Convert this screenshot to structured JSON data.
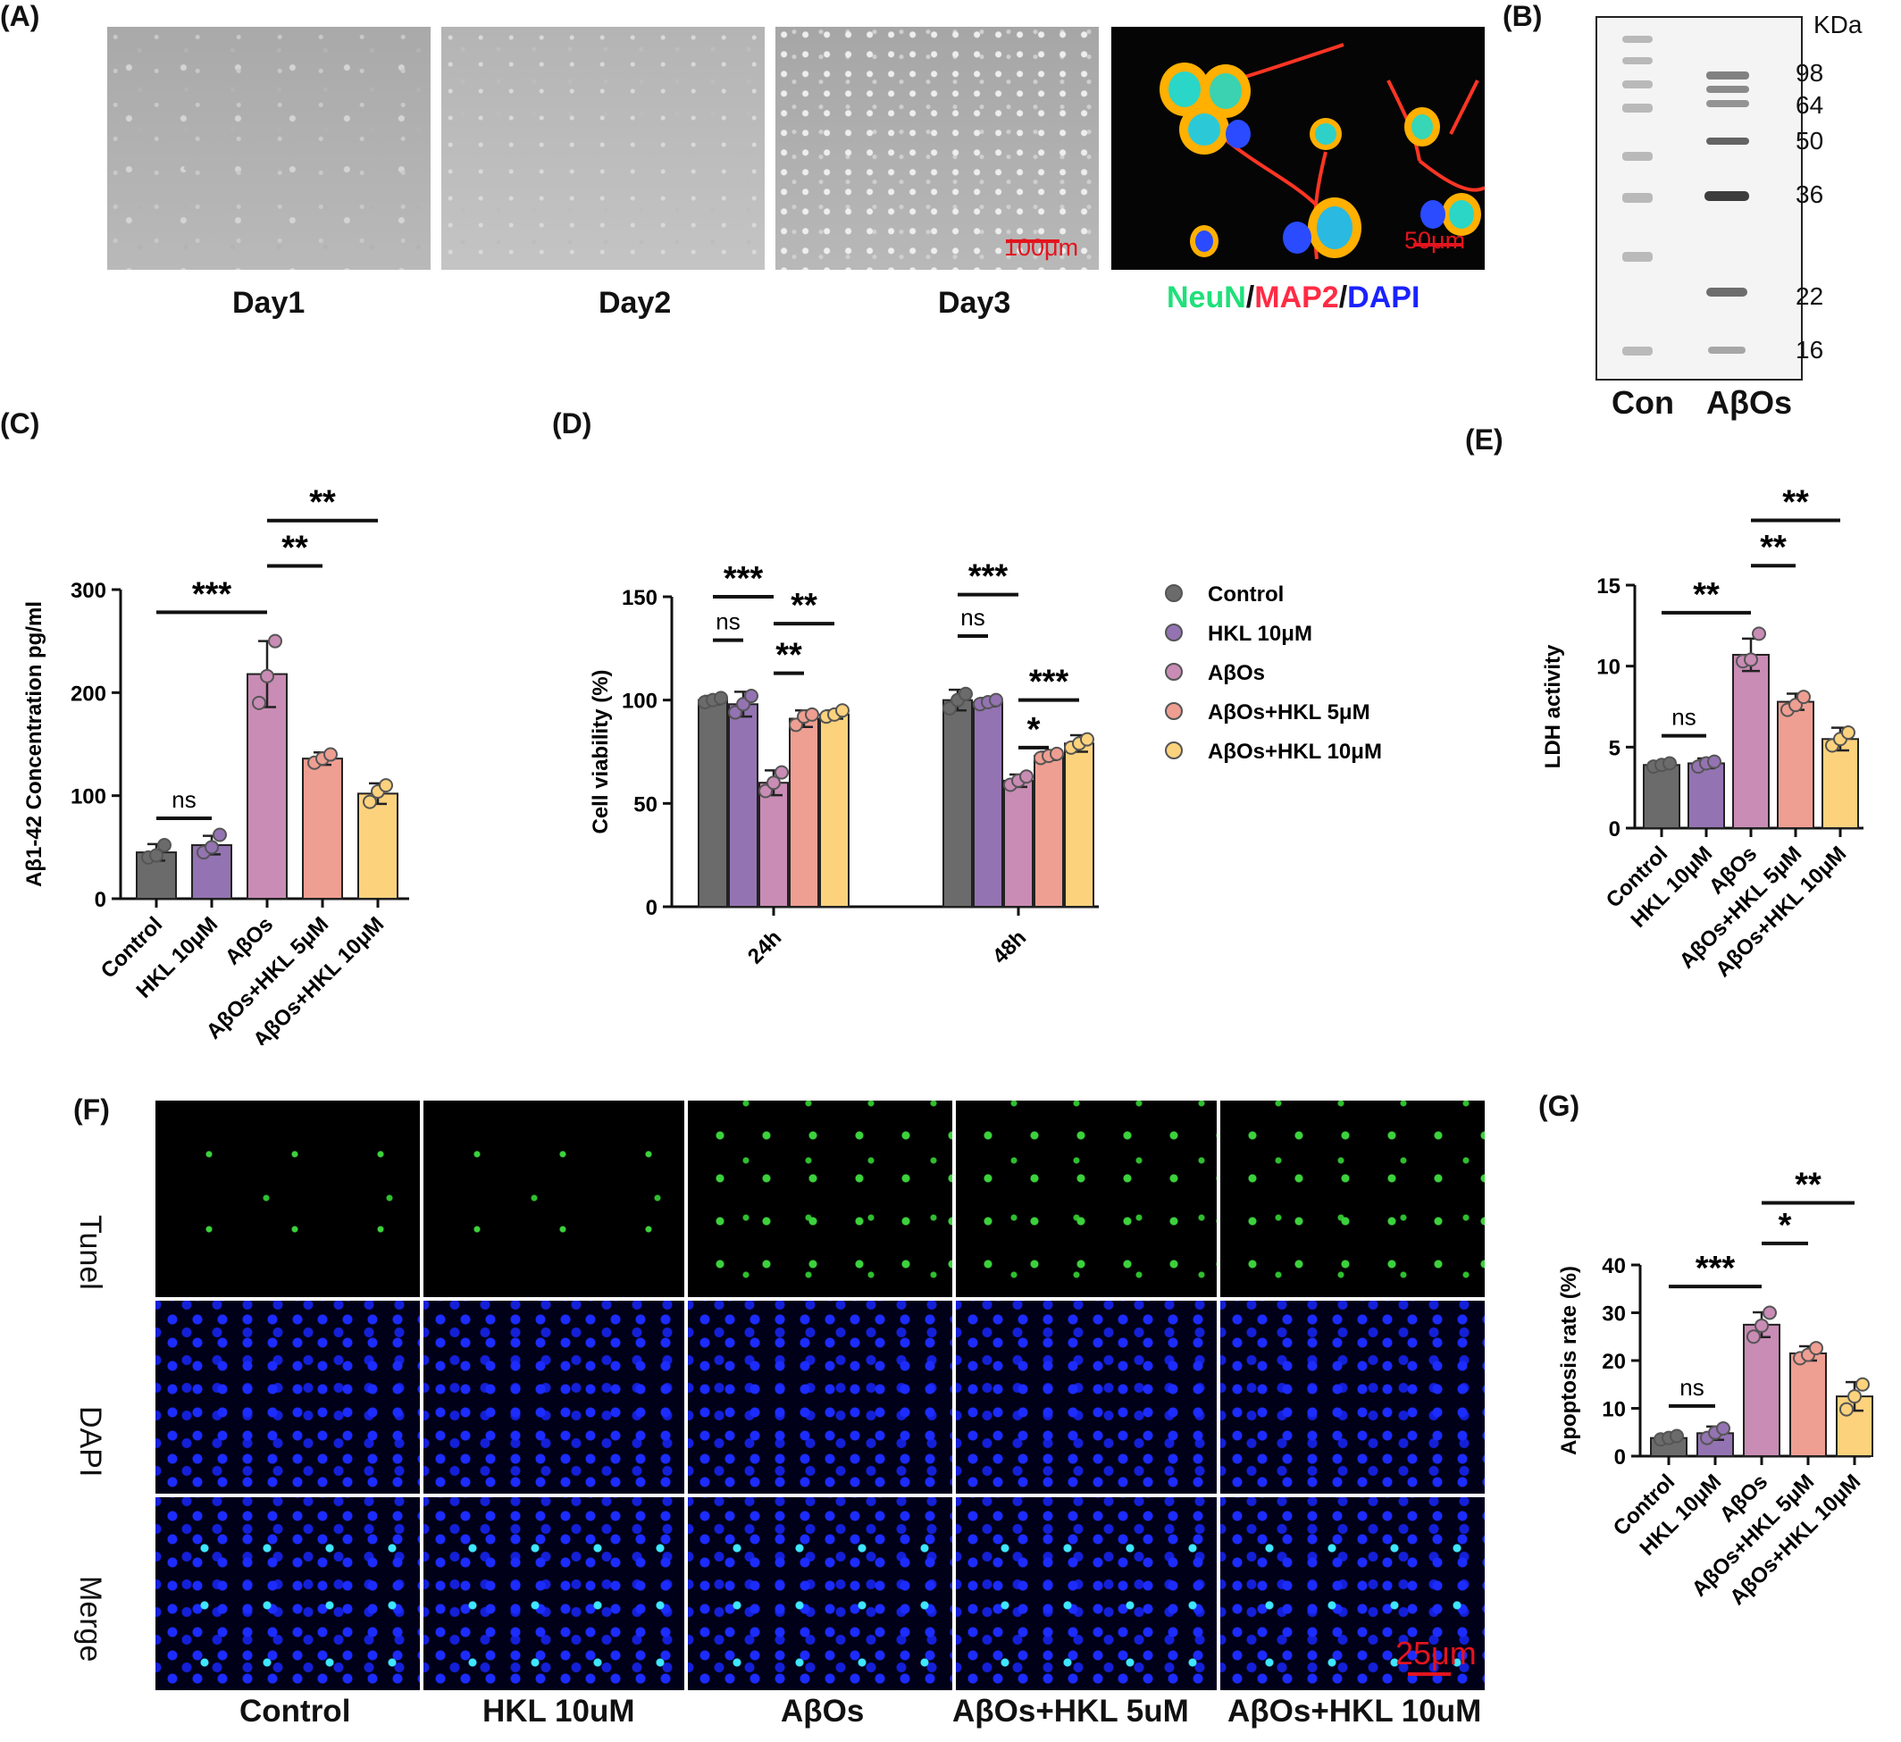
{
  "panel_labels": {
    "A": "(A)",
    "B": "(B)",
    "C": "(C)",
    "D": "(D)",
    "E": "(E)",
    "F": "(F)",
    "G": "(G)"
  },
  "panel_a": {
    "captions": [
      "Day1",
      "Day2",
      "Day3"
    ],
    "scalebars": [
      "100μm",
      "50μm"
    ],
    "stain": {
      "neun": "NeuN",
      "sep1": "/",
      "map2": "MAP2",
      "sep2": "/",
      "dapi": "DAPI"
    },
    "colors": {
      "neun": "#1fe07a",
      "map2": "#ff2b44",
      "dapi": "#1a22ff"
    }
  },
  "panel_b": {
    "unit": "KDa",
    "markers": [
      "98",
      "64",
      "50",
      "36",
      "22",
      "16"
    ],
    "lanes": [
      "Con",
      "AβOs"
    ]
  },
  "panel_f": {
    "rows": [
      "Tunel",
      "DAPI",
      "Merge"
    ],
    "columns": [
      "Control",
      "HKL 10uM",
      "AβOs",
      "AβOs+HKL 5uM",
      "AβOs+HKL 10uM"
    ],
    "scalebar": "25μm"
  },
  "chart_data": [
    {
      "panel": "C",
      "type": "bar",
      "ylabel": "Aβ1-42 Concentration pg/ml",
      "ylim": [
        0,
        300
      ],
      "yticks": [
        0,
        100,
        200,
        300
      ],
      "categories": [
        "Control",
        "HKL 10μM",
        "AβOs",
        "AβOs+HKL 5μM",
        "AβOs+HKL 10μM"
      ],
      "values": [
        45,
        52,
        218,
        136,
        102
      ],
      "errors": [
        8,
        9,
        32,
        6,
        10
      ],
      "points": [
        [
          40,
          42,
          52
        ],
        [
          45,
          50,
          62
        ],
        [
          190,
          216,
          250
        ],
        [
          132,
          136,
          140
        ],
        [
          94,
          104,
          110
        ]
      ],
      "colors": [
        "#6b6b6b",
        "#9473b2",
        "#c98cb5",
        "#ef9e92",
        "#fcd27d"
      ],
      "significance": [
        {
          "from": 0,
          "to": 1,
          "label": "ns",
          "y": 78
        },
        {
          "from": 0,
          "to": 2,
          "label": "***",
          "y": 278
        },
        {
          "from": 2,
          "to": 3,
          "label": "**",
          "y": 323
        },
        {
          "from": 2,
          "to": 4,
          "label": "**",
          "y": 367
        }
      ]
    },
    {
      "panel": "D",
      "type": "bar",
      "ylabel": "Cell viability (%)",
      "ylim": [
        0,
        150
      ],
      "yticks": [
        0,
        50,
        100,
        150
      ],
      "groups": [
        "24h",
        "48h"
      ],
      "series": [
        {
          "name": "Control",
          "color": "#6b6b6b",
          "values": [
            100,
            100
          ],
          "errors": [
            2,
            5
          ],
          "points": [
            [
              99,
              100,
              101
            ],
            [
              96,
              100,
              103
            ]
          ]
        },
        {
          "name": "HKL 10μM",
          "color": "#9473b2",
          "values": [
            98,
            99
          ],
          "errors": [
            6,
            2
          ],
          "points": [
            [
              94,
              98,
              102
            ],
            [
              98,
              99,
              100
            ]
          ]
        },
        {
          "name": "AβOs",
          "color": "#c98cb5",
          "values": [
            60,
            61
          ],
          "errors": [
            6,
            3
          ],
          "points": [
            [
              56,
              60,
              65
            ],
            [
              59,
              61,
              63
            ]
          ]
        },
        {
          "name": "AβOs+HKL 5μM",
          "color": "#ef9e92",
          "values": [
            91,
            73
          ],
          "errors": [
            4,
            2
          ],
          "points": [
            [
              88,
              92,
              93
            ],
            [
              72,
              73,
              74
            ]
          ]
        },
        {
          "name": "AβOs+HKL 10μM",
          "color": "#fcd27d",
          "values": [
            93,
            79
          ],
          "errors": [
            2,
            4
          ],
          "points": [
            [
              92,
              93,
              95
            ],
            [
              77,
              79,
              81
            ]
          ]
        }
      ],
      "significance": [
        {
          "group": 0,
          "from": 0,
          "to": 1,
          "label": "ns",
          "y": 129
        },
        {
          "group": 0,
          "from": 0,
          "to": 2,
          "label": "***",
          "y": 150
        },
        {
          "group": 0,
          "from": 2,
          "to": 3,
          "label": "**",
          "y": 113
        },
        {
          "group": 0,
          "from": 2,
          "to": 4,
          "label": "**",
          "y": 137
        },
        {
          "group": 1,
          "from": 0,
          "to": 1,
          "label": "ns",
          "y": 131
        },
        {
          "group": 1,
          "from": 0,
          "to": 2,
          "label": "***",
          "y": 151
        },
        {
          "group": 1,
          "from": 2,
          "to": 3,
          "label": "*",
          "y": 77
        },
        {
          "group": 1,
          "from": 2,
          "to": 4,
          "label": "***",
          "y": 100
        }
      ]
    },
    {
      "panel": "E",
      "type": "bar",
      "ylabel": "LDH activity",
      "ylim": [
        0,
        15
      ],
      "yticks": [
        0,
        5,
        10,
        15
      ],
      "categories": [
        "Control",
        "HKL 10μM",
        "AβOs",
        "AβOs+HKL 5μM",
        "AβOs+HKL 10μM"
      ],
      "values": [
        3.9,
        4.0,
        10.7,
        7.8,
        5.5
      ],
      "errors": [
        0.2,
        0.3,
        1.0,
        0.5,
        0.7
      ],
      "points": [
        [
          3.8,
          3.9,
          4.0
        ],
        [
          3.8,
          4.0,
          4.1
        ],
        [
          10.3,
          10.4,
          12.0
        ],
        [
          7.3,
          7.6,
          8.1
        ],
        [
          5.1,
          5.5,
          5.9
        ]
      ],
      "colors": [
        "#6b6b6b",
        "#9473b2",
        "#c98cb5",
        "#ef9e92",
        "#fcd27d"
      ],
      "significance": [
        {
          "from": 0,
          "to": 1,
          "label": "ns",
          "y": 5.7
        },
        {
          "from": 0,
          "to": 2,
          "label": "**",
          "y": 13.3
        },
        {
          "from": 2,
          "to": 3,
          "label": "**",
          "y": 16.2
        },
        {
          "from": 2,
          "to": 4,
          "label": "**",
          "y": 19.0
        }
      ]
    },
    {
      "panel": "G",
      "type": "bar",
      "ylabel": "Apoptosis rate (%)",
      "ylim": [
        0,
        40
      ],
      "yticks": [
        0,
        10,
        20,
        30,
        40
      ],
      "categories": [
        "Control",
        "HKL 10μM",
        "AβOs",
        "AβOs+HKL 5μM",
        "AβOs+HKL 10μM"
      ],
      "values": [
        3.8,
        4.8,
        27.5,
        21.5,
        12.5
      ],
      "errors": [
        0.6,
        1.4,
        2.6,
        1.5,
        3.0
      ],
      "points": [
        [
          3.5,
          3.8,
          4.2
        ],
        [
          3.8,
          4.9,
          5.8
        ],
        [
          25.0,
          27.3,
          30.0
        ],
        [
          20.5,
          21.2,
          22.6
        ],
        [
          9.8,
          12.5,
          15.0
        ]
      ],
      "colors": [
        "#6b6b6b",
        "#9473b2",
        "#c98cb5",
        "#ef9e92",
        "#fcd27d"
      ],
      "significance": [
        {
          "from": 0,
          "to": 1,
          "label": "ns",
          "y": 10.5
        },
        {
          "from": 0,
          "to": 2,
          "label": "***",
          "y": 35.5
        },
        {
          "from": 2,
          "to": 3,
          "label": "*",
          "y": 44.5
        },
        {
          "from": 2,
          "to": 4,
          "label": "**",
          "y": 53.0
        }
      ]
    }
  ]
}
